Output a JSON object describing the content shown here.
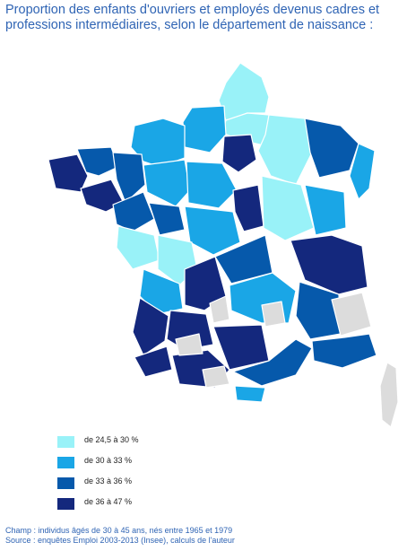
{
  "title": {
    "line1": "Proportion des enfants d'ouvriers et employés devenus cadres et",
    "line2": "professions intermédiaires, selon le département de naissance :"
  },
  "colors": {
    "class1": "#99f2f8",
    "class2": "#1aa6e6",
    "class3": "#0659ab",
    "class4": "#14287d",
    "nodata": "#dcdcdc"
  },
  "legend": [
    {
      "label": "de 24,5 à 30 %",
      "color_key": "class1"
    },
    {
      "label": "de 30 à 33 %",
      "color_key": "class2"
    },
    {
      "label": "de 33 à 36 %",
      "color_key": "class3"
    },
    {
      "label": "de 36 à 47 %",
      "color_key": "class4"
    }
  ],
  "footer": {
    "line1": "Champ : individus âgés de 30 à 45 ans, nés entre 1965 et 1979",
    "line2": "Source : enquêtes Emploi 2003-2013 (Insee), calculs de l'auteur"
  }
}
